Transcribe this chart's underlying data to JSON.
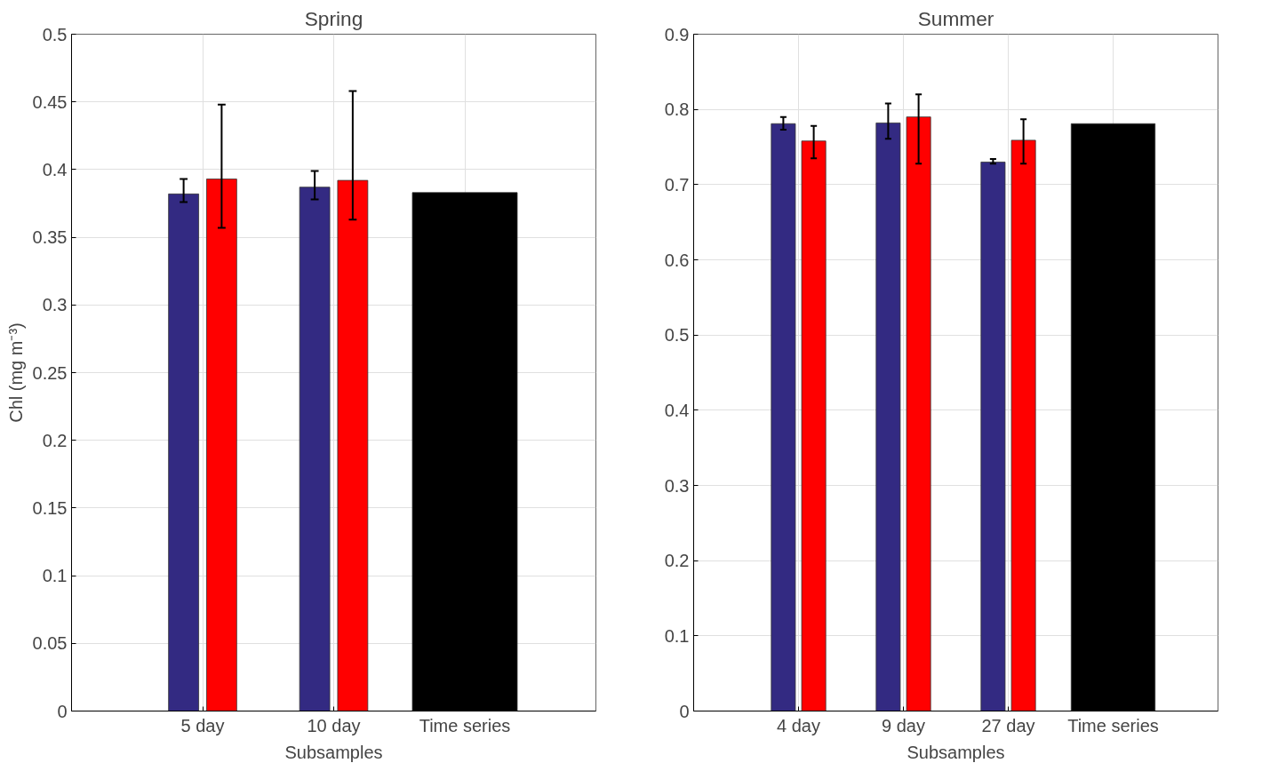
{
  "chart_data": [
    {
      "type": "bar",
      "title": "Spring",
      "xlabel": "Subsamples",
      "ylabel": "Chl (mg m⁻³)",
      "categories": [
        "5 day",
        "10 day",
        "Time series"
      ],
      "ylim": [
        0,
        0.5
      ],
      "yticks": [
        0,
        0.05,
        0.1,
        0.15,
        0.2,
        0.25,
        0.3,
        0.35,
        0.4,
        0.45,
        0.5
      ],
      "grid": true,
      "series": [
        {
          "color": "#332a82",
          "values": [
            0.382,
            0.387,
            null
          ],
          "errors": [
            [
              0.376,
              0.393
            ],
            [
              0.378,
              0.399
            ],
            null
          ]
        },
        {
          "color": "#ff0000",
          "values": [
            0.393,
            0.392,
            null
          ],
          "errors": [
            [
              0.357,
              0.448
            ],
            [
              0.363,
              0.458
            ],
            null
          ]
        },
        {
          "color": "#000000",
          "values": [
            null,
            null,
            0.383
          ]
        }
      ]
    },
    {
      "type": "bar",
      "title": "Summer",
      "xlabel": "Subsamples",
      "categories": [
        "4 day",
        "9 day",
        "27 day",
        "Time series"
      ],
      "ylim": [
        0,
        0.9
      ],
      "yticks": [
        0,
        0.1,
        0.2,
        0.3,
        0.4,
        0.5,
        0.6,
        0.7,
        0.8,
        0.9
      ],
      "grid": true,
      "series": [
        {
          "color": "#332a82",
          "values": [
            0.781,
            0.782,
            0.73,
            null
          ],
          "errors": [
            [
              0.773,
              0.79
            ],
            [
              0.761,
              0.808
            ],
            [
              0.728,
              0.734
            ],
            null
          ]
        },
        {
          "color": "#ff0000",
          "values": [
            0.758,
            0.79,
            0.759,
            null
          ],
          "errors": [
            [
              0.735,
              0.778
            ],
            [
              0.728,
              0.82
            ],
            [
              0.728,
              0.787
            ],
            null
          ]
        },
        {
          "color": "#000000",
          "values": [
            null,
            null,
            null,
            0.781
          ]
        }
      ]
    }
  ]
}
